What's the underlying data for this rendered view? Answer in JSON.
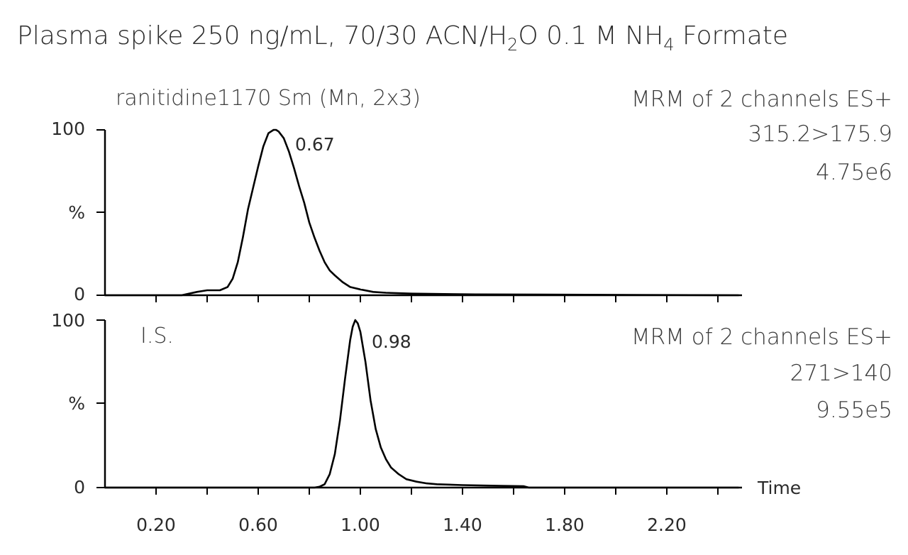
{
  "title": {
    "part1": "Plasma spike 250 ng/mL, 70/30 ACN/H",
    "sub1": "2",
    "part2": "O 0.1 M NH",
    "sub2": "4",
    "part3": " Formate"
  },
  "panels": [
    {
      "left_label": "ranitidine1170  Sm (Mn, 2x3)",
      "right_lines": [
        "MRM of 2 channels ES+",
        "315.2>175.9",
        "4.75e6"
      ],
      "peak_label": "0.67",
      "y_tick_labels": [
        "100",
        "%",
        "0"
      ]
    },
    {
      "left_label": "I.S.",
      "right_lines": [
        "MRM of 2 channels ES+",
        "271>140",
        "9.55e5"
      ],
      "peak_label": "0.98",
      "y_tick_labels": [
        "100",
        "%",
        "0"
      ]
    }
  ],
  "x_axis_label": "Time",
  "chart_data": [
    {
      "type": "line",
      "title": "",
      "xlabel": "Time",
      "ylabel": "%",
      "xlim": [
        0,
        2.5
      ],
      "ylim": [
        0,
        100
      ],
      "x_ticks": [
        "0.20",
        "0.60",
        "1.00",
        "1.40",
        "1.80",
        "2.20"
      ],
      "peak_label": "0.67",
      "series": [
        {
          "x": [
            0.0,
            0.3,
            0.33,
            0.36,
            0.4,
            0.45,
            0.48,
            0.5,
            0.52,
            0.54,
            0.56,
            0.58,
            0.6,
            0.62,
            0.64,
            0.66,
            0.67,
            0.68,
            0.7,
            0.72,
            0.74,
            0.76,
            0.78,
            0.8,
            0.82,
            0.84,
            0.86,
            0.88,
            0.9,
            0.93,
            0.96,
            1.0,
            1.05,
            1.1,
            1.2,
            1.45,
            2.48
          ],
          "y": [
            0,
            0,
            1,
            2,
            3,
            3,
            5,
            10,
            20,
            35,
            52,
            65,
            78,
            90,
            98,
            100,
            100,
            99,
            95,
            87,
            77,
            66,
            56,
            44,
            35,
            27,
            20,
            15,
            12,
            8,
            5,
            3.5,
            2,
            1.5,
            1,
            0.5,
            0
          ]
        }
      ]
    },
    {
      "type": "line",
      "title": "",
      "xlabel": "Time",
      "ylabel": "%",
      "xlim": [
        0,
        2.5
      ],
      "ylim": [
        0,
        100
      ],
      "x_ticks": [
        "0.20",
        "0.60",
        "1.00",
        "1.40",
        "1.80",
        "2.20"
      ],
      "peak_label": "0.98",
      "series": [
        {
          "x": [
            0.0,
            0.82,
            0.84,
            0.86,
            0.88,
            0.9,
            0.92,
            0.94,
            0.96,
            0.97,
            0.98,
            0.99,
            1.0,
            1.02,
            1.04,
            1.06,
            1.08,
            1.1,
            1.12,
            1.15,
            1.18,
            1.22,
            1.26,
            1.3,
            1.4,
            1.55,
            1.64,
            1.66,
            2.48
          ],
          "y": [
            0,
            0,
            0.5,
            2,
            8,
            20,
            40,
            65,
            88,
            96,
            100,
            98,
            93,
            75,
            52,
            35,
            24,
            17,
            12,
            8,
            5,
            3.5,
            2.5,
            2,
            1.5,
            1,
            0.8,
            0,
            0
          ]
        }
      ]
    }
  ]
}
